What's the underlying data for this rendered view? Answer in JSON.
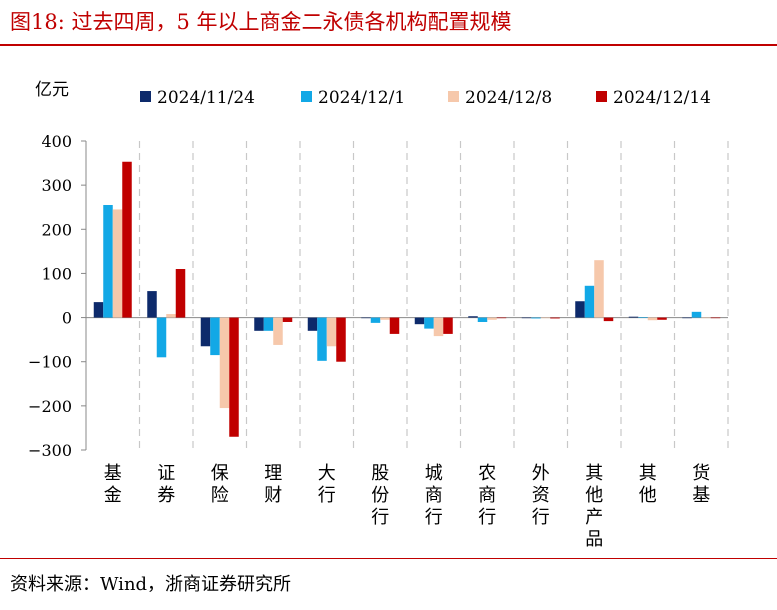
{
  "figure": {
    "title": "图18:  过去四周，5 年以上商金二永债各机构配置规模",
    "source": "资料来源：Wind，浙商证券研究所"
  },
  "chart_data": {
    "type": "bar",
    "ylabel": "亿元",
    "ylim": [
      -300,
      400
    ],
    "yticks": [
      400,
      300,
      200,
      100,
      0,
      -100,
      -200,
      -300
    ],
    "ytick_labels": [
      "400",
      "300",
      "200",
      "100",
      "0",
      "−100",
      "−200",
      "−300"
    ],
    "legend_position": "top",
    "categories": [
      "基金",
      "证券",
      "保险",
      "理财",
      "大行",
      "股份行",
      "城商行",
      "农商行",
      "外资行",
      "其他产品",
      "其他",
      "货基"
    ],
    "series": [
      {
        "name": "2024/11/24",
        "color": "#0d2a6b",
        "values": [
          35,
          60,
          -65,
          -30,
          -30,
          0,
          -15,
          3,
          -1,
          37,
          2,
          0
        ]
      },
      {
        "name": "2024/12/1",
        "color": "#12a8e6",
        "values": [
          255,
          -90,
          -85,
          -30,
          -98,
          -12,
          -25,
          -10,
          -2,
          72,
          1,
          13
        ]
      },
      {
        "name": "2024/12/8",
        "color": "#f6c8ab",
        "values": [
          245,
          8,
          -205,
          -62,
          -65,
          -5,
          -42,
          -5,
          -1,
          130,
          -6,
          0
        ]
      },
      {
        "name": "2024/12/14",
        "color": "#c00000",
        "values": [
          353,
          110,
          -270,
          -10,
          -100,
          -37,
          -37,
          -1,
          -2,
          -8,
          -5,
          -1
        ]
      }
    ]
  }
}
